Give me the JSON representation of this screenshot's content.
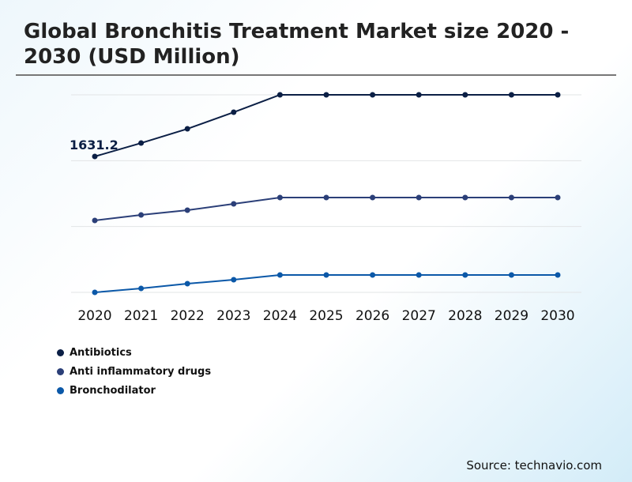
{
  "chart_data": {
    "type": "line",
    "title": "Global Bronchitis Treatment Market size 2020 - 2030 (USD Million)",
    "x": [
      "2020",
      "2021",
      "2022",
      "2023",
      "2024",
      "2025",
      "2026",
      "2027",
      "2028",
      "2029",
      "2030"
    ],
    "ylim": [
      0,
      2371
    ],
    "grid": true,
    "legend_position": "bottom-left",
    "series": [
      {
        "name": "Antibiotics",
        "color": "#0b1f45",
        "values": [
          1631.2,
          1792,
          1963,
          2162,
          2371,
          2371,
          2371,
          2371,
          2371,
          2371,
          2371
        ]
      },
      {
        "name": "Anti inflammatory drugs",
        "color": "#2b3f78",
        "values": [
          863,
          929,
          986,
          1062,
          1138,
          1138,
          1138,
          1138,
          1138,
          1138,
          1138
        ]
      },
      {
        "name": "Bronchodilator",
        "color": "#0b58a8",
        "values": [
          0,
          47,
          104,
          152,
          209,
          209,
          209,
          209,
          209,
          209,
          209
        ]
      }
    ],
    "annotations": [
      {
        "series": "Antibiotics",
        "x": "2020",
        "text": "1631.2"
      }
    ]
  },
  "source": "Source: technavio.com"
}
